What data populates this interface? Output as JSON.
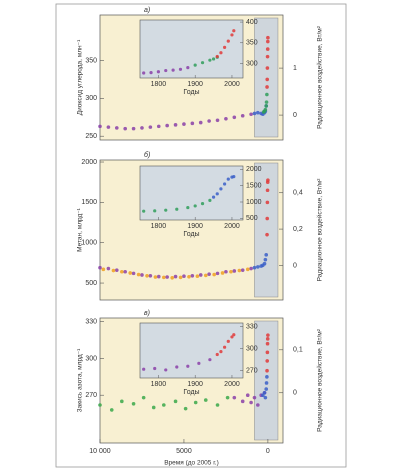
{
  "chart_data": [
    {
      "type": "scatter",
      "label": "а)",
      "ylabel": "Диоксид углерода, млн⁻¹",
      "y2label": "Радиационное воздействие, Вт/м²",
      "xlim": [
        10000,
        -900
      ],
      "ylim": [
        245,
        410
      ],
      "yticks": [
        250,
        300,
        350
      ],
      "y2lim": [
        -0.53,
        2.13
      ],
      "y2ticks": [
        0,
        1
      ],
      "series": [
        {
          "color": "#8a3fa8",
          "x": [
            10000,
            9500,
            9000,
            8500,
            8000,
            7500,
            7000,
            6500,
            6000,
            5500,
            5000,
            4500,
            4000,
            3500,
            3000,
            2500,
            2000,
            1500,
            1000
          ],
          "values": [
            263,
            262,
            261,
            260,
            260,
            261,
            262,
            263,
            264,
            265,
            266,
            267,
            268,
            270,
            271,
            273,
            275,
            277,
            279
          ]
        },
        {
          "color": "#3a5fc8",
          "x": [
            800,
            600,
            400,
            300,
            200,
            150,
            100
          ],
          "values": [
            280,
            281,
            280,
            279,
            281,
            283,
            290
          ]
        },
        {
          "color": "#2f9e5a",
          "x": [
            250,
            200,
            150,
            100,
            80,
            60
          ],
          "values": [
            282,
            283,
            285,
            290,
            295,
            305
          ]
        },
        {
          "color": "#e03a3a",
          "x": [
            50,
            40,
            30,
            20,
            10,
            5,
            0
          ],
          "values": [
            315,
            325,
            340,
            355,
            365,
            375,
            380
          ]
        }
      ],
      "inset": {
        "xlabel": "Годы",
        "xlim": [
          1750,
          2030
        ],
        "xticks": [
          1800,
          1900,
          2000
        ],
        "ylim": [
          265,
          405
        ],
        "yticks": [
          300,
          350,
          400
        ],
        "series": [
          {
            "color": "#8a3fa8",
            "x": [
              1760,
              1780,
              1800,
              1820,
              1840,
              1860,
              1880
            ],
            "values": [
              277,
              278,
              280,
              283,
              284,
              286,
              290
            ]
          },
          {
            "color": "#2f9e5a",
            "x": [
              1900,
              1920,
              1940,
              1950,
              1960
            ],
            "values": [
              296,
              302,
              308,
              311,
              315
            ]
          },
          {
            "color": "#e03a3a",
            "x": [
              1960,
              1970,
              1980,
              1990,
              2000,
              2005
            ],
            "values": [
              317,
              326,
              339,
              354,
              369,
              379
            ]
          }
        ]
      }
    },
    {
      "type": "scatter",
      "label": "б)",
      "ylabel": "Метан, млрд⁻¹",
      "y2label": "Радиационное воздействие, Вт/м²",
      "xlim": [
        10000,
        -900
      ],
      "ylim": [
        290,
        2025
      ],
      "yticks": [
        500,
        1000,
        1500,
        2000
      ],
      "y2lim": [
        -0.19,
        0.58
      ],
      "y2ticks": [
        0,
        {
          "value": 0.2,
          "label": "0,2"
        },
        {
          "value": 0.4,
          "label": "0,4"
        }
      ],
      "series": [
        {
          "color": "#8a3fa8",
          "x": [
            10000,
            9500,
            9000,
            8500,
            8000,
            7500,
            7000,
            6500,
            6000,
            5500,
            5000,
            4500,
            4000,
            3500,
            3000,
            2500,
            2000,
            1500,
            1000
          ],
          "values": [
            690,
            680,
            660,
            640,
            620,
            600,
            590,
            580,
            575,
            580,
            585,
            590,
            600,
            610,
            620,
            640,
            650,
            660,
            680
          ]
        },
        {
          "color": "#f0a020",
          "x": [
            9800,
            9200,
            8700,
            8200,
            7700,
            7200,
            6700,
            6200,
            5700,
            5200,
            4700,
            4200,
            3700,
            3200,
            2700,
            2200,
            1700,
            1200
          ],
          "values": [
            670,
            655,
            640,
            625,
            605,
            590,
            575,
            570,
            565,
            570,
            578,
            585,
            595,
            605,
            625,
            640,
            655,
            670
          ]
        },
        {
          "color": "#3a5fc8",
          "x": [
            800,
            600,
            400,
            300,
            200,
            150,
            100
          ],
          "values": [
            690,
            700,
            710,
            720,
            740,
            790,
            850
          ]
        },
        {
          "color": "#e03a3a",
          "x": [
            50,
            40,
            30,
            20,
            10,
            0
          ],
          "values": [
            1100,
            1300,
            1500,
            1650,
            1750,
            1775
          ]
        }
      ],
      "inset": {
        "xlabel": "Годы",
        "xlim": [
          1750,
          2030
        ],
        "xticks": [
          1800,
          1900,
          2000
        ],
        "ylim": [
          450,
          2100
        ],
        "yticks": [
          500,
          1000,
          1500,
          2000
        ],
        "series": [
          {
            "color": "#2f9e5a",
            "x": [
              1760,
              1790,
              1820,
              1850,
              1880,
              1900,
              1920,
              1940
            ],
            "values": [
              720,
              730,
              750,
              780,
              830,
              880,
              950,
              1050
            ]
          },
          {
            "color": "#3a5fc8",
            "x": [
              1950,
              1960,
              1970,
              1980,
              1990,
              2000,
              2005
            ],
            "values": [
              1150,
              1250,
              1400,
              1550,
              1700,
              1760,
              1775
            ]
          }
        ]
      }
    },
    {
      "type": "scatter",
      "label": "в)",
      "ylabel": "Закись азота, млрд⁻¹",
      "y2label": "Радиационное воздействие, Вт/м²",
      "xlabel": "Время (до 2005 г.)",
      "xlim": [
        10000,
        -900
      ],
      "xticks": [
        {
          "value": 10000,
          "label": "10 000"
        },
        5000,
        0
      ],
      "ylim": [
        231,
        333
      ],
      "yticks": [
        270,
        300,
        330
      ],
      "y2lim": [
        -0.117,
        0.174
      ],
      "y2ticks": [
        0,
        {
          "value": 0.1,
          "label": "0,1"
        }
      ],
      "series": [
        {
          "color": "#3aa84a",
          "x": [
            10000,
            9300,
            8700,
            8000,
            7400,
            6800,
            6200,
            5500,
            4900,
            4300,
            3700,
            3000,
            2400
          ],
          "values": [
            262,
            258,
            265,
            263,
            268,
            260,
            262,
            265,
            259,
            264,
            266,
            262,
            268
          ]
        },
        {
          "color": "#8a3fa8",
          "x": [
            2000,
            1500,
            1200,
            1000,
            800,
            600,
            400,
            200
          ],
          "values": [
            268,
            265,
            270,
            264,
            268,
            262,
            270,
            272
          ]
        },
        {
          "color": "#3a5fc8",
          "x": [
            300,
            200,
            150,
            100,
            80,
            60
          ],
          "values": [
            270,
            272,
            268,
            275,
            280,
            285
          ]
        },
        {
          "color": "#e03a3a",
          "x": [
            50,
            40,
            30,
            20,
            10,
            0
          ],
          "values": [
            290,
            298,
            305,
            312,
            316,
            319
          ]
        }
      ],
      "inset": {
        "xlabel": "Годы",
        "xlim": [
          1750,
          2030
        ],
        "xticks": [
          1800,
          1900,
          2000
        ],
        "ylim": [
          260,
          335
        ],
        "yticks": [
          270,
          300,
          330
        ],
        "series": [
          {
            "color": "#8a3fa8",
            "x": [
              1760,
              1790,
              1820,
              1850,
              1880,
              1910,
              1940
            ],
            "values": [
              272,
              273,
              271,
              275,
              276,
              280,
              285
            ]
          },
          {
            "color": "#e03a3a",
            "x": [
              1960,
              1970,
              1980,
              1990,
              2000,
              2005
            ],
            "values": [
              292,
              296,
              302,
              310,
              316,
              319
            ]
          }
        ]
      }
    }
  ]
}
